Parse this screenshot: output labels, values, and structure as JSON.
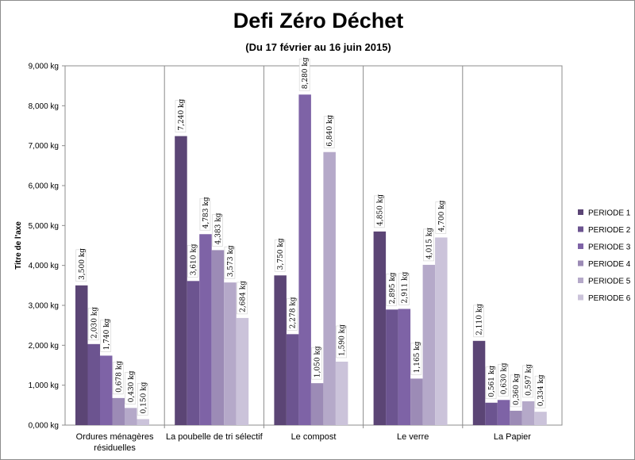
{
  "chart_data": {
    "type": "bar",
    "title": "Defi Zéro Déchet",
    "subtitle": "(Du 17 février au 16 juin 2015)",
    "ylabel": "Titre de l'axe",
    "xlabel": "",
    "ylim": [
      0,
      9
    ],
    "yticks": [
      0,
      1,
      2,
      3,
      4,
      5,
      6,
      7,
      8,
      9
    ],
    "ytick_labels": [
      "0,000 kg",
      "1,000 kg",
      "2,000 kg",
      "3,000 kg",
      "4,000 kg",
      "5,000 kg",
      "6,000 kg",
      "7,000 kg",
      "8,000 kg",
      "9,000 kg"
    ],
    "grid": "vertical category separators",
    "legend_position": "right",
    "categories": [
      [
        "Ordures ménagères",
        "résiduelles"
      ],
      [
        "La poubelle de tri sélectif"
      ],
      [
        "Le compost"
      ],
      [
        "Le verre"
      ],
      [
        "La Papier"
      ]
    ],
    "series": [
      {
        "name": "PERIODE 1",
        "color": "#5b4575",
        "values": [
          3.5,
          7.24,
          3.75,
          4.85,
          2.11
        ],
        "labels": [
          "3,500 kg",
          "7,240 kg",
          "3,750 kg",
          "4,850 kg",
          "2,110 kg"
        ]
      },
      {
        "name": "PERIODE 2",
        "color": "#6c5490",
        "values": [
          2.03,
          3.61,
          2.278,
          2.895,
          0.561
        ],
        "labels": [
          "2,030 kg",
          "3,610 kg",
          "2,278 kg",
          "2,895 kg",
          "0,561 kg"
        ]
      },
      {
        "name": "PERIODE 3",
        "color": "#7e63a6",
        "values": [
          1.74,
          4.783,
          8.28,
          2.911,
          0.63
        ],
        "labels": [
          "1,740 kg",
          "4,783 kg",
          "8,280 kg",
          "2,911 kg",
          "0,630 kg"
        ]
      },
      {
        "name": "PERIODE 4",
        "color": "#9c8bb6",
        "values": [
          0.678,
          4.383,
          1.05,
          1.165,
          0.36
        ],
        "labels": [
          "0,678 kg",
          "4,383 kg",
          "1,050 kg",
          "1,165 kg",
          "0,360 kg"
        ]
      },
      {
        "name": "PERIODE 5",
        "color": "#b5a9c9",
        "values": [
          0.43,
          3.573,
          6.84,
          4.015,
          0.597
        ],
        "labels": [
          "0,430 kg",
          "3,573 kg",
          "6,840 kg",
          "4,015 kg",
          "0,597 kg"
        ]
      },
      {
        "name": "PERIODE 6",
        "color": "#cbc3da",
        "values": [
          0.15,
          2.684,
          1.59,
          4.7,
          0.334
        ],
        "labels": [
          "0,150 kg",
          "2,684 kg",
          "1,590 kg",
          "4,700 kg",
          "0,334 kg"
        ]
      }
    ]
  }
}
